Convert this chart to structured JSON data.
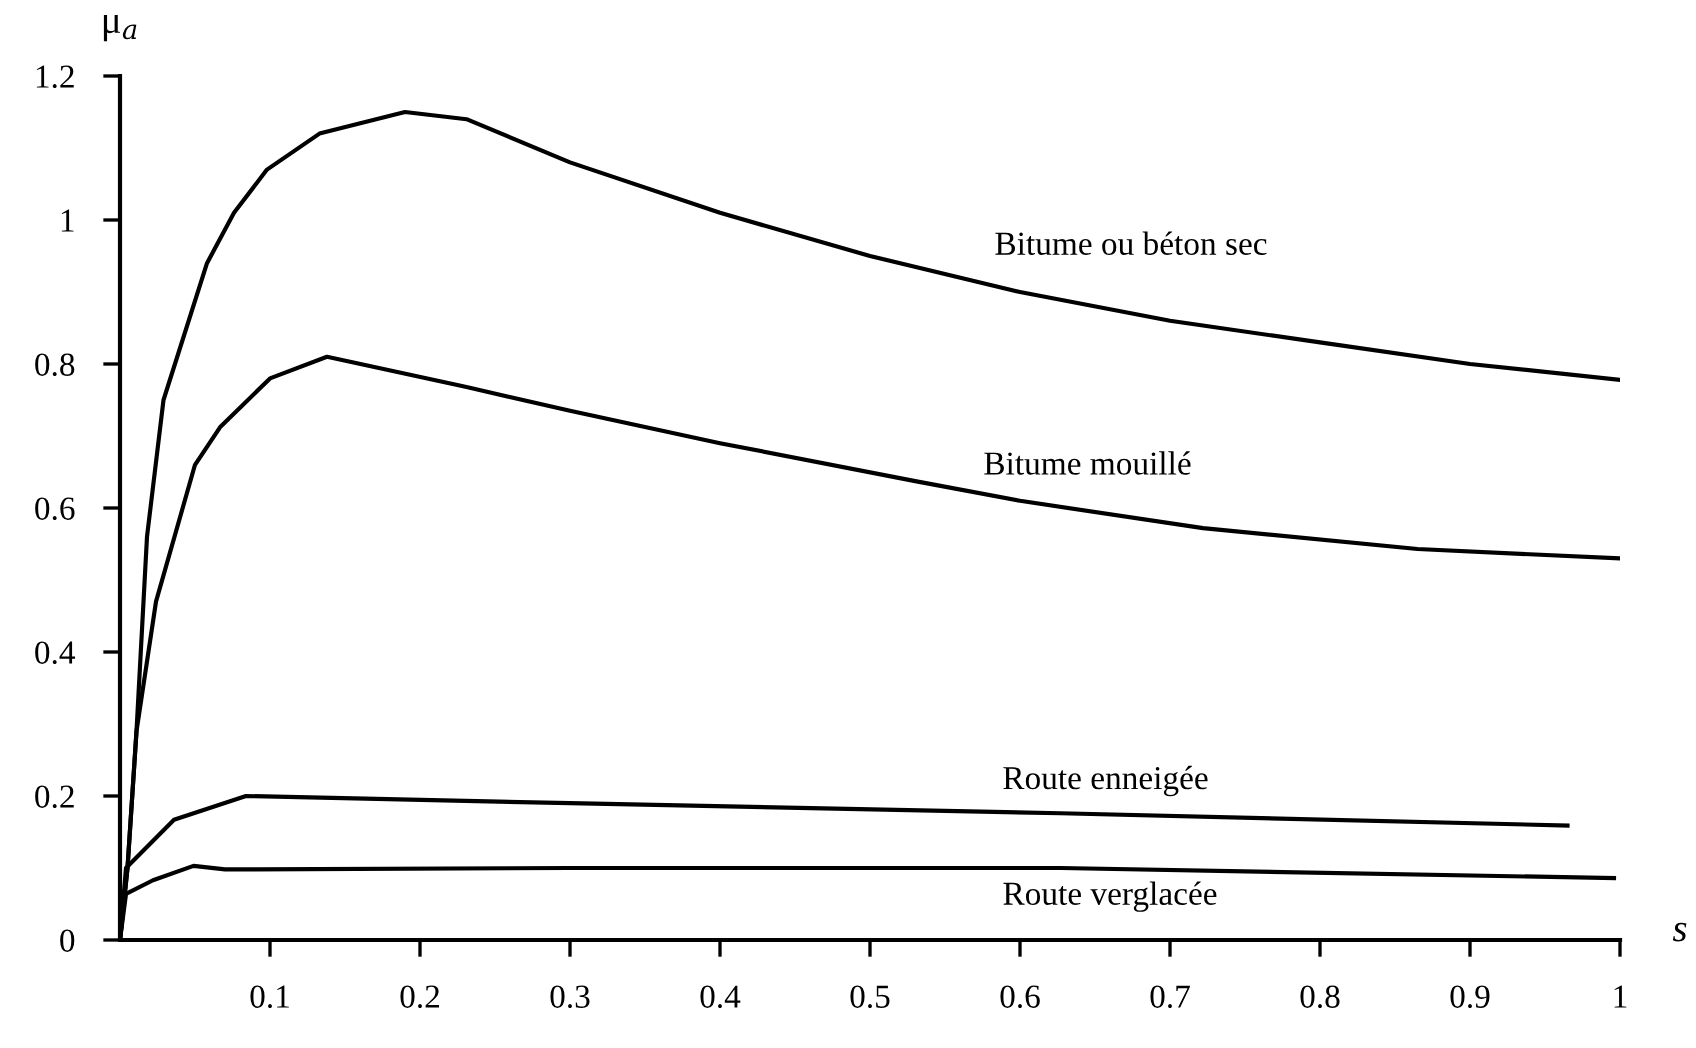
{
  "chart_data": {
    "type": "line",
    "xlabel": "s",
    "ylabel": "μ$_{a}$",
    "xlim": [
      0,
      1
    ],
    "ylim": [
      0,
      1.2
    ],
    "xticks": [
      0.1,
      0.2,
      0.3,
      0.4,
      0.5,
      0.6,
      0.7,
      0.8,
      0.9,
      1
    ],
    "yticks": [
      0,
      0.2,
      0.4,
      0.6,
      0.8,
      1,
      1.2
    ],
    "grid": false,
    "marker": "none",
    "line_style": "solid",
    "series": [
      {
        "name": "Bitume ou béton sec",
        "color": "#000000",
        "x": [
          0,
          0.005,
          0.011,
          0.018,
          0.029,
          0.058,
          0.076,
          0.098,
          0.133,
          0.19,
          0.231,
          0.3,
          0.4,
          0.5,
          0.6,
          0.7,
          0.8,
          0.9,
          1.0
        ],
        "values": [
          0,
          0.1,
          0.29,
          0.56,
          0.75,
          0.94,
          1.01,
          1.07,
          1.12,
          1.15,
          1.14,
          1.08,
          1.01,
          0.95,
          0.9,
          0.86,
          0.83,
          0.8,
          0.778
        ]
      },
      {
        "name": "Bitume mouillé",
        "color": "#000000",
        "x": [
          0,
          0.005,
          0.011,
          0.024,
          0.05,
          0.067,
          0.1,
          0.138,
          0.231,
          0.3,
          0.4,
          0.531,
          0.6,
          0.722,
          0.865,
          1.0
        ],
        "values": [
          0,
          0.1,
          0.29,
          0.47,
          0.66,
          0.713,
          0.78,
          0.81,
          0.768,
          0.735,
          0.69,
          0.637,
          0.61,
          0.572,
          0.543,
          0.53
        ]
      },
      {
        "name": "Route enneigée",
        "color": "#000000",
        "x": [
          0,
          0.004,
          0.036,
          0.084,
          0.3,
          0.627,
          0.965
        ],
        "values": [
          0,
          0.1,
          0.167,
          0.2,
          0.19,
          0.176,
          0.159
        ]
      },
      {
        "name": "Route verglacée",
        "color": "#000000",
        "x": [
          0,
          0.004,
          0.022,
          0.049,
          0.07,
          0.3,
          0.627,
          0.996
        ],
        "values": [
          0,
          0.064,
          0.083,
          0.103,
          0.098,
          0.1,
          0.1,
          0.086
        ]
      }
    ]
  }
}
